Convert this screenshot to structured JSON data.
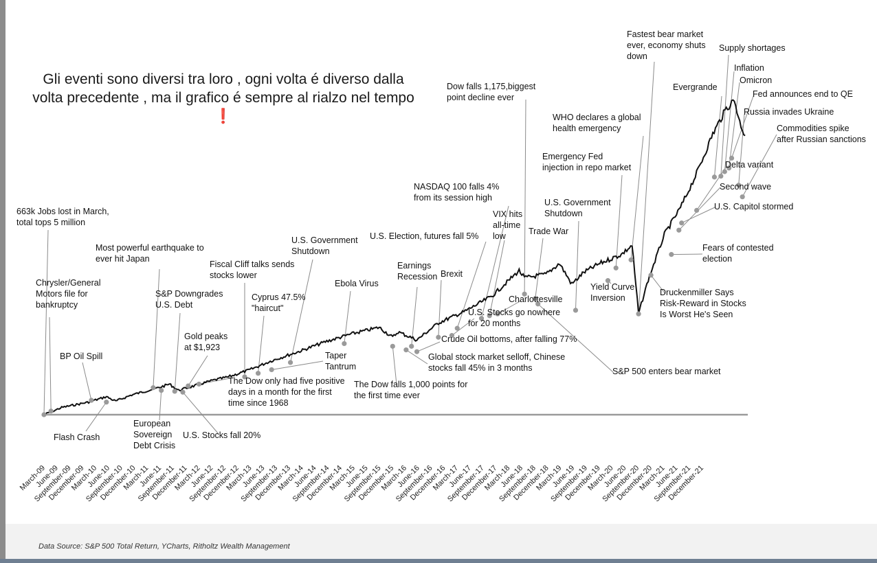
{
  "headline": {
    "text": "Gli eventi sono diversi tra loro , ogni volta é diverso dalla volta precedente , ma il grafico é sempre al rialzo nel tempo",
    "emoji": "❗"
  },
  "source": "Data Source: S&P 500 Total Return, YCharts, Ritholtz Wealth Management",
  "chart_data": {
    "type": "line",
    "title": "",
    "series": [
      {
        "name": "S&P 500 Total Return",
        "x": [
          2009.17,
          2009.5,
          2010.0,
          2010.33,
          2010.5,
          2010.8,
          2011.3,
          2011.5,
          2011.67,
          2011.9,
          2012.3,
          2012.6,
          2013.0,
          2013.4,
          2013.9,
          2014.4,
          2014.9,
          2015.4,
          2015.65,
          2015.75,
          2016.1,
          2016.5,
          2017.0,
          2017.5,
          2018.0,
          2018.1,
          2018.5,
          2018.75,
          2018.98,
          2019.2,
          2019.5,
          2019.9,
          2020.1,
          2020.22,
          2020.4,
          2020.7,
          2021.0,
          2021.3,
          2021.6,
          2021.85,
          2022.0,
          2022.1,
          2022.2
        ],
        "values": [
          0,
          8,
          14,
          20,
          15,
          22,
          30,
          34,
          27,
          31,
          38,
          42,
          50,
          60,
          70,
          81,
          90,
          97,
          86,
          92,
          83,
          102,
          115,
          132,
          160,
          152,
          156,
          168,
          145,
          158,
          168,
          178,
          188,
          112,
          150,
          200,
          230,
          268,
          312,
          340,
          350,
          325,
          310
        ]
      }
    ],
    "x_tick_labels": [
      "March-09",
      "June-09",
      "September-09",
      "December-09",
      "March-10",
      "June-10",
      "September-10",
      "December-10",
      "March-11",
      "June-11",
      "September-11",
      "December-11",
      "March-12",
      "June-12",
      "September-12",
      "December-12",
      "March-13",
      "June-13",
      "September-13",
      "December-13",
      "March-14",
      "June-14",
      "September-14",
      "December-14",
      "March-15",
      "June-15",
      "September-15",
      "December-15",
      "March-16",
      "June-16",
      "September-16",
      "December-16",
      "March-17",
      "June-17",
      "September-17",
      "December-17",
      "March-18",
      "June-18",
      "September-18",
      "December-18",
      "March-19",
      "June-19",
      "September-19",
      "December-19",
      "March-20",
      "June-20",
      "September-20",
      "December-20",
      "March-21",
      "June-21",
      "September-21",
      "December-21"
    ],
    "xlim": [
      2009.17,
      2022.25
    ],
    "ylim": [
      0,
      360
    ],
    "annotations": [
      {
        "text": "663k Jobs lost in March,|total tops 5 million",
        "x": 2009.17,
        "y": 0
      },
      {
        "text": "Chrysler/General|Motors file for|bankruptcy",
        "x": 2009.3,
        "y": 4
      },
      {
        "text": "BP Oil Spill",
        "x": 2010.05,
        "y": 16
      },
      {
        "text": "Flash Crash",
        "x": 2010.33,
        "y": 14
      },
      {
        "text": "Most powerful earthquake to|ever hit Japan",
        "x": 2011.2,
        "y": 30
      },
      {
        "text": "European|Sovereign|Debt Crisis",
        "x": 2011.35,
        "y": 27
      },
      {
        "text": "S&P Downgrades|U.S. Debt",
        "x": 2011.6,
        "y": 26
      },
      {
        "text": "U.S. Stocks fall 20%",
        "x": 2011.75,
        "y": 25
      },
      {
        "text": "Gold peaks|at $1,923",
        "x": 2011.85,
        "y": 32
      },
      {
        "text": "The Dow only had five positive|days in a month for the first|time since 1968",
        "x": 2012.05,
        "y": 34
      },
      {
        "text": "Fiscal Cliff talks sends|stocks lower",
        "x": 2012.9,
        "y": 42
      },
      {
        "text": "Cyprus 47.5%|\"haircut\"",
        "x": 2013.15,
        "y": 46
      },
      {
        "text": "Taper|Tantrum",
        "x": 2013.4,
        "y": 50
      },
      {
        "text": "U.S. Government|Shutdown",
        "x": 2013.75,
        "y": 58
      },
      {
        "text": "Ebola Virus",
        "x": 2014.75,
        "y": 79
      },
      {
        "text": "The Dow falls 1,000 points for|the first time ever",
        "x": 2015.65,
        "y": 76
      },
      {
        "text": "Global stock market selloff, Chinese|stocks fall 45% in 3 months",
        "x": 2015.9,
        "y": 72
      },
      {
        "text": "Earnings|Recession",
        "x": 2016.0,
        "y": 76
      },
      {
        "text": "Crude Oil bottoms, after falling 77%",
        "x": 2016.1,
        "y": 70
      },
      {
        "text": "Brexit",
        "x": 2016.5,
        "y": 86
      },
      {
        "text": "U.S. Stocks go nowhere|for 20 months",
        "x": 2016.75,
        "y": 88
      },
      {
        "text": "U.S. Election, futures fall 5%",
        "x": 2016.85,
        "y": 96
      },
      {
        "text": "NASDAQ 100 falls 4%|from its  session high",
        "x": 2017.3,
        "y": 107
      },
      {
        "text": "Charlottesville",
        "x": 2017.6,
        "y": 112
      },
      {
        "text": "VIX hits|all-time|low",
        "x": 2017.45,
        "y": 110
      },
      {
        "text": "Dow falls 1,175,biggest|point decline ever",
        "x": 2018.1,
        "y": 134
      },
      {
        "text": "S&P 500 enters bear market",
        "x": 2018.35,
        "y": 123
      },
      {
        "text": "Trade War",
        "x": 2018.3,
        "y": 129
      },
      {
        "text": "U.S. Government|Shutdown",
        "x": 2019.05,
        "y": 116
      },
      {
        "text": "Yield Curve|Inversion",
        "x": 2019.65,
        "y": 149
      },
      {
        "text": "Emergency Fed|injection in repo market",
        "x": 2019.8,
        "y": 163
      },
      {
        "text": "WHO declares a global|health emergency",
        "x": 2020.08,
        "y": 172
      },
      {
        "text": "Fastest bear market|ever, economy shuts|down",
        "x": 2020.22,
        "y": 112
      },
      {
        "text": "Druckenmiller Says|Risk-Reward in Stocks|Is Worst He's Seen",
        "x": 2020.45,
        "y": 155
      },
      {
        "text": "Fears of contested|election",
        "x": 2020.83,
        "y": 178
      },
      {
        "text": "U.S. Capitol stormed",
        "x": 2021.02,
        "y": 213
      },
      {
        "text": "Second wave",
        "x": 2020.97,
        "y": 205
      },
      {
        "text": "Delta variant",
        "x": 2021.3,
        "y": 227
      },
      {
        "text": "Evergrande",
        "x": 2021.63,
        "y": 264
      },
      {
        "text": "Supply shortages",
        "x": 2021.75,
        "y": 265
      },
      {
        "text": "Inflation",
        "x": 2021.82,
        "y": 270
      },
      {
        "text": "Omicron",
        "x": 2021.9,
        "y": 274
      },
      {
        "text": "Fed announces end to QE",
        "x": 2021.95,
        "y": 285
      },
      {
        "text": "Russia invades Ukraine",
        "x": 2022.08,
        "y": 255
      },
      {
        "text": "Commodities spike|after Russian sanctions",
        "x": 2022.15,
        "y": 242
      }
    ],
    "colors": {
      "line": "#111111",
      "marker": "#9a9a9a",
      "leader": "#8a8a8a",
      "axis": "#9a9a9a",
      "exclaim": "#d11a1a"
    }
  }
}
